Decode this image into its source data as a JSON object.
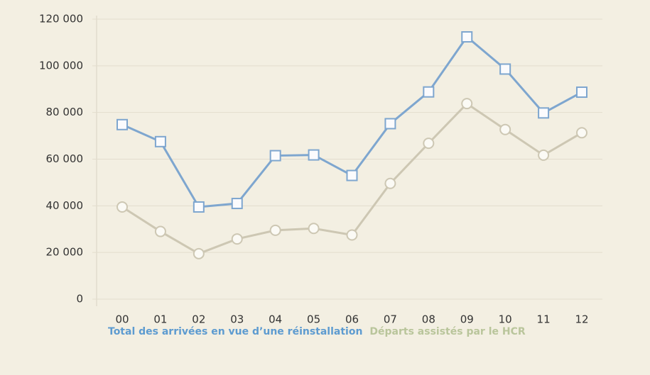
{
  "chart_data": {
    "type": "line",
    "categories": [
      "00",
      "01",
      "02",
      "03",
      "04",
      "05",
      "06",
      "07",
      "08",
      "09",
      "10",
      "11",
      "12"
    ],
    "series": [
      {
        "name": "Total des arrivées en vue d’une réinstallation",
        "color": "#7ea6cf",
        "marker": "square",
        "legend_color": "#5d9bd0",
        "values": [
          74800,
          67500,
          39500,
          41000,
          61500,
          61800,
          53000,
          75200,
          88800,
          112400,
          98600,
          79800,
          88700
        ]
      },
      {
        "name": "Départs assistés par le HCR",
        "color": "#cdc7b3",
        "marker": "circle",
        "legend_color": "#b9c59b",
        "values": [
          39500,
          29000,
          19500,
          25800,
          29500,
          30300,
          27500,
          49600,
          66800,
          83800,
          72700,
          61700,
          71300
        ]
      }
    ],
    "ylim": [
      0,
      120000
    ],
    "yticks": [
      0,
      {
        "value": 20000,
        "label": "20 000"
      },
      {
        "value": 40000,
        "label": "40 000"
      },
      {
        "value": 60000,
        "label": "60 000"
      },
      {
        "value": 80000,
        "label": "80 000"
      },
      {
        "value": 100000,
        "label": "100 000"
      },
      {
        "value": 120000,
        "label": "120 000"
      }
    ],
    "grid": true
  }
}
